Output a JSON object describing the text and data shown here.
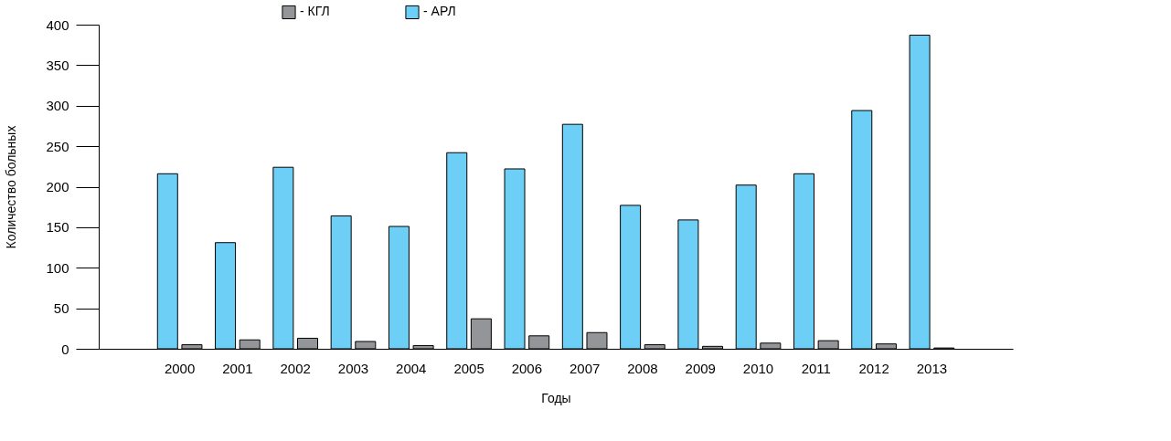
{
  "chart_data": {
    "type": "bar",
    "xlabel": "Годы",
    "ylabel": "Количество больных",
    "categories": [
      "2000",
      "2001",
      "2002",
      "2003",
      "2004",
      "2005",
      "2006",
      "2007",
      "2008",
      "2009",
      "2010",
      "2011",
      "2012",
      "2013"
    ],
    "series": [
      {
        "name": "- АРЛ",
        "color": "#6dcff6",
        "values": [
          216,
          131,
          224,
          164,
          151,
          242,
          222,
          277,
          177,
          159,
          202,
          216,
          294,
          387
        ]
      },
      {
        "name": "- КГЛ",
        "color": "#939598",
        "values": [
          5,
          11,
          13,
          9,
          4,
          37,
          16,
          20,
          5,
          3,
          7,
          10,
          6,
          1
        ]
      }
    ],
    "ylim": [
      0,
      400
    ],
    "yticks": [
      0,
      50,
      100,
      150,
      200,
      250,
      300,
      350,
      400
    ],
    "grid": false,
    "legend": "top"
  }
}
